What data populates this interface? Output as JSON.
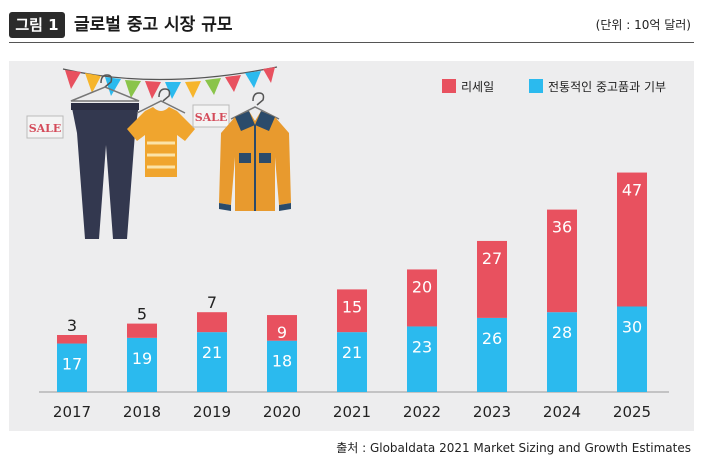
{
  "header": {
    "figure_label": "그림 1",
    "title": "글로벌 중고 시장 규모",
    "unit": "(단위 : 10억 달러)"
  },
  "source": "출처 : Globaldata 2021 Market Sizing and Growth Estimates",
  "illustration": {
    "sale_left": "SALE",
    "sale_right": "SALE",
    "icons": [
      "pennant-bunting-icon",
      "pants-on-hanger-icon",
      "tshirt-on-hanger-icon",
      "jacket-on-hanger-icon"
    ]
  },
  "colors": {
    "resale": "#e8515f",
    "traditional": "#2bbaee",
    "panel": "#ededee"
  },
  "chart_data": {
    "type": "bar",
    "stacked": true,
    "categories": [
      "2017",
      "2018",
      "2019",
      "2020",
      "2021",
      "2022",
      "2023",
      "2024",
      "2025"
    ],
    "series": [
      {
        "name": "전통적인 중고품과 기부",
        "color": "#2bbaee",
        "values": [
          17,
          19,
          21,
          18,
          21,
          23,
          26,
          28,
          30
        ]
      },
      {
        "name": "리세일",
        "color": "#e8515f",
        "values": [
          3,
          5,
          7,
          9,
          15,
          20,
          27,
          36,
          47
        ]
      }
    ],
    "ylim": [
      0,
      80
    ],
    "grid": false,
    "legend": "top-right"
  }
}
